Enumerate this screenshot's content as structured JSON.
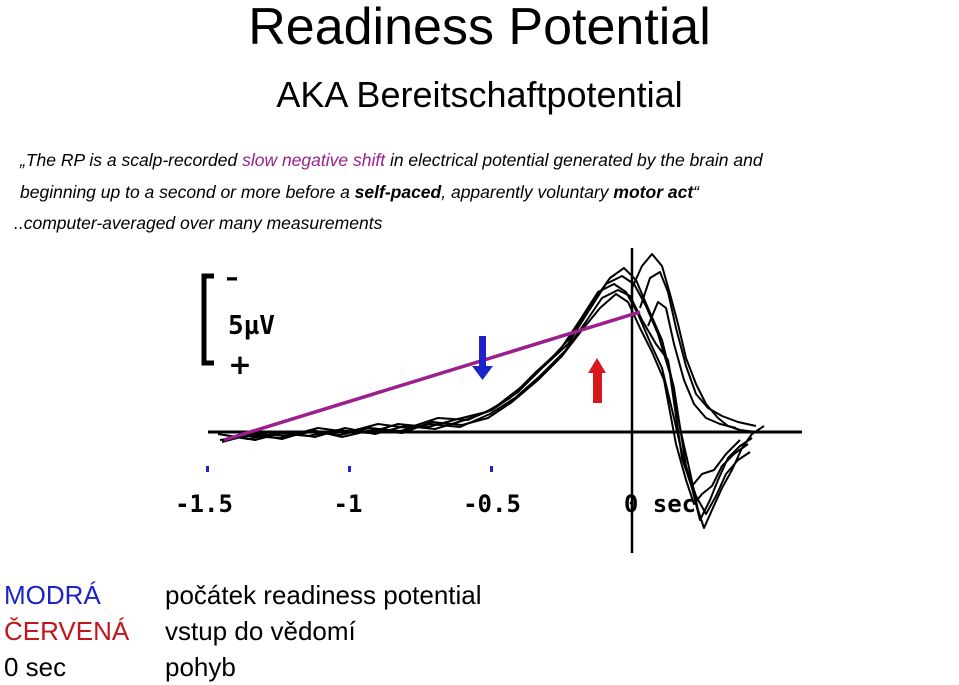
{
  "title": "Readiness Potential",
  "subtitle": "AKA Bereitschaftpotential",
  "quote": {
    "open_mark": "„",
    "p1_a": "The RP is a scalp-recorded ",
    "p1_hl": "slow negative shift",
    "p1_b": " in electrical potential generated by the brain and",
    "p2_a": "beginning up to a second or more before a ",
    "p2_bold1": "self-paced",
    "p2_b": ", apparently voluntary ",
    "p2_bold2": "motor act",
    "p2_close": "“",
    "p3": "..computer-averaged over many measurements"
  },
  "figure": {
    "scale_minus": "–",
    "scale_label": "5µV",
    "scale_plus": "+",
    "ticks": [
      "-1.5",
      "-1",
      "-0.5",
      "0 sec"
    ],
    "line_color": "#9b1f8e",
    "blue_arrow_color": "#1c24c7",
    "red_arrow_color": "#d7191c"
  },
  "legend": [
    {
      "key": "MODRÁ",
      "value": "počátek readiness potential"
    },
    {
      "key": "ČERVENÁ",
      "value": "vstup do vědomí"
    },
    {
      "key": "0 sec",
      "value": "pohyb"
    }
  ]
}
